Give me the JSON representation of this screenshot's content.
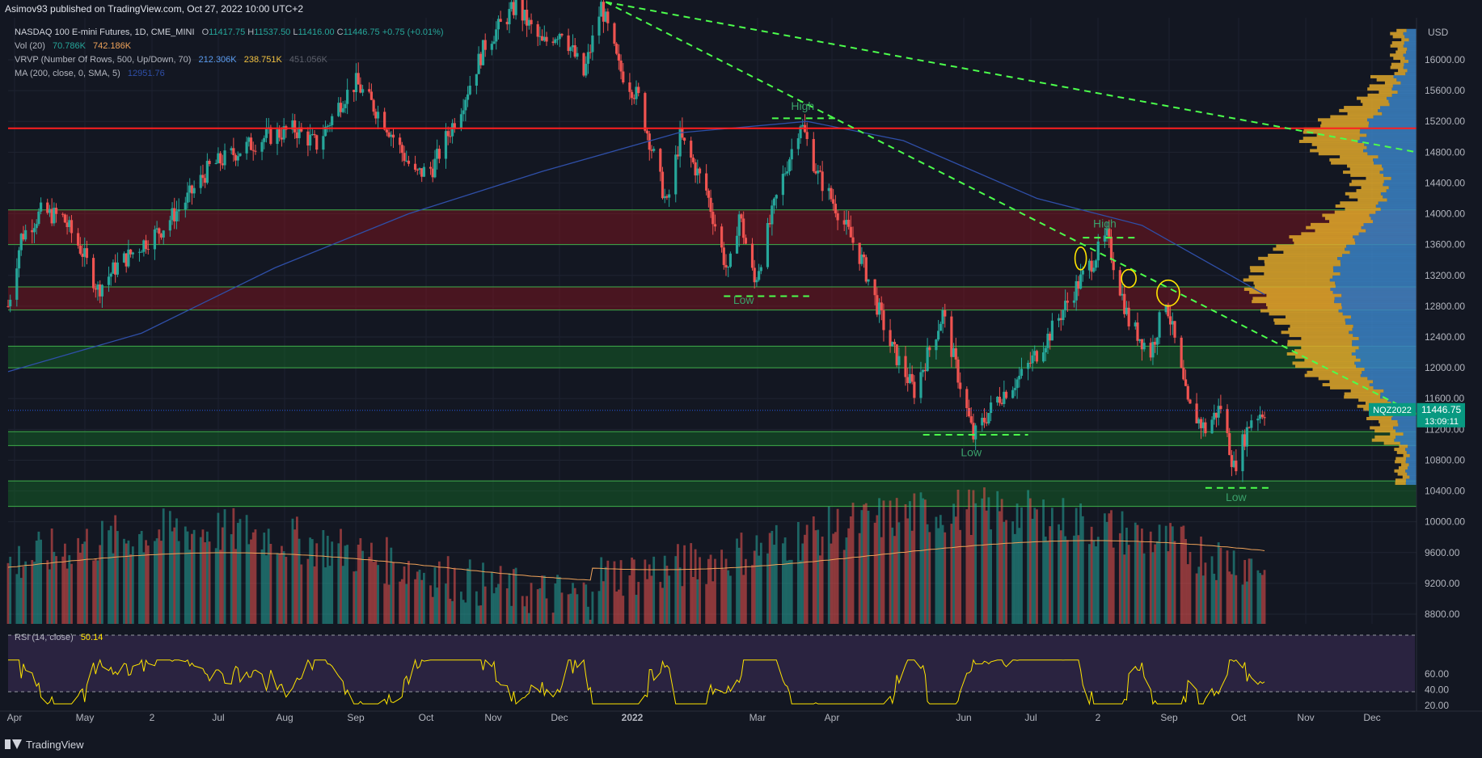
{
  "header": {
    "published": "Asimov93 published on TradingView.com, Oct 27, 2022 10:00 UTC+2"
  },
  "legend": {
    "symbol": "NASDAQ 100 E-mini Futures, 1D, CME_MINI",
    "o_label": "O",
    "o_value": "11417.75",
    "h_label": "H",
    "h_value": "11537.50",
    "l_label": "L",
    "l_value": "11416.00",
    "c_label": "C",
    "c_value": "11446.75",
    "change": "+0.75 (+0.01%)",
    "vol_label": "Vol (20)",
    "vol_a": "70.786K",
    "vol_b": "742.186K",
    "vrvp_label": "VRVP (Number Of Rows, 500, Up/Down, 70)",
    "vrvp_up": "212.306K",
    "vrvp_down": "238.751K",
    "vrvp_total": "451.056K",
    "ma_label": "MA (200, close, 0, SMA, 5)",
    "ma_value": "12951.76",
    "rsi_label": "RSI (14, close)",
    "rsi_value": "50.14"
  },
  "footer": {
    "brand": "TradingView"
  },
  "colors": {
    "up": "#26a69a",
    "down": "#ef5350",
    "ma": "#2f4fa8",
    "trend": "#4cff4c",
    "resistance": "#ff1f1f",
    "rsi": "#ffe500",
    "profile_up": "#3b82c4",
    "profile_down": "#e0a82a",
    "pill": "#089981"
  },
  "chart_data": {
    "type": "candlestick",
    "currency": "USD",
    "y_ticks": [
      16000,
      15600,
      15200,
      14800,
      14400,
      14000,
      13600,
      13200,
      12800,
      12400,
      12000,
      11600,
      11200,
      10800,
      10400,
      10000,
      9600,
      9200,
      8800
    ],
    "x_labels": [
      "Apr",
      "May",
      "2",
      "Jul",
      "Aug",
      "Sep",
      "Oct",
      "Nov",
      "Dec",
      "2022",
      "Mar",
      "Apr",
      "Jun",
      "Jul",
      "2",
      "Sep",
      "Oct",
      "Nov",
      "Dec"
    ],
    "price_path": [
      {
        "date": "2021-04-01",
        "close": 12800
      },
      {
        "date": "2021-04-07",
        "close": 13700
      },
      {
        "date": "2021-04-16",
        "close": 14020
      },
      {
        "date": "2021-04-26",
        "close": 13950
      },
      {
        "date": "2021-05-05",
        "close": 13500
      },
      {
        "date": "2021-05-12",
        "close": 13020
      },
      {
        "date": "2021-05-20",
        "close": 13300
      },
      {
        "date": "2021-06-01",
        "close": 13600
      },
      {
        "date": "2021-06-10",
        "close": 13800
      },
      {
        "date": "2021-06-22",
        "close": 14200
      },
      {
        "date": "2021-07-02",
        "close": 14600
      },
      {
        "date": "2021-07-14",
        "close": 14800
      },
      {
        "date": "2021-07-28",
        "close": 15000
      },
      {
        "date": "2021-08-10",
        "close": 15100
      },
      {
        "date": "2021-08-20",
        "close": 14900
      },
      {
        "date": "2021-09-01",
        "close": 15500
      },
      {
        "date": "2021-09-07",
        "close": 15700
      },
      {
        "date": "2021-09-20",
        "close": 15200
      },
      {
        "date": "2021-10-04",
        "close": 14500
      },
      {
        "date": "2021-10-12",
        "close": 14600
      },
      {
        "date": "2021-10-25",
        "close": 15400
      },
      {
        "date": "2021-11-05",
        "close": 16200
      },
      {
        "date": "2021-11-19",
        "close": 16700
      },
      {
        "date": "2021-12-01",
        "close": 16200
      },
      {
        "date": "2021-12-10",
        "close": 16400
      },
      {
        "date": "2021-12-20",
        "close": 15800
      },
      {
        "date": "2021-12-28",
        "close": 16700
      },
      {
        "date": "2022-01-05",
        "close": 15900
      },
      {
        "date": "2022-01-14",
        "close": 15500
      },
      {
        "date": "2022-01-27",
        "close": 14100
      },
      {
        "date": "2022-02-02",
        "close": 15000
      },
      {
        "date": "2022-02-14",
        "close": 14300
      },
      {
        "date": "2022-02-24",
        "close": 13200
      },
      {
        "date": "2022-03-01",
        "close": 14000
      },
      {
        "date": "2022-03-08",
        "close": 13100
      },
      {
        "date": "2022-03-18",
        "close": 14200
      },
      {
        "date": "2022-03-29",
        "close": 15200
      },
      {
        "date": "2022-04-06",
        "close": 14500
      },
      {
        "date": "2022-04-14",
        "close": 14100
      },
      {
        "date": "2022-04-26",
        "close": 13400
      },
      {
        "date": "2022-05-09",
        "close": 12300
      },
      {
        "date": "2022-05-20",
        "close": 11700
      },
      {
        "date": "2022-06-02",
        "close": 12700
      },
      {
        "date": "2022-06-16",
        "close": 11100
      },
      {
        "date": "2022-06-27",
        "close": 11600
      },
      {
        "date": "2022-07-08",
        "close": 11900
      },
      {
        "date": "2022-07-20",
        "close": 12400
      },
      {
        "date": "2022-08-01",
        "close": 13000
      },
      {
        "date": "2022-08-16",
        "close": 13700
      },
      {
        "date": "2022-08-26",
        "close": 12600
      },
      {
        "date": "2022-09-05",
        "close": 12200
      },
      {
        "date": "2022-09-12",
        "close": 12900
      },
      {
        "date": "2022-09-22",
        "close": 11500
      },
      {
        "date": "2022-09-30",
        "close": 11200
      },
      {
        "date": "2022-10-07",
        "close": 11500
      },
      {
        "date": "2022-10-13",
        "close": 10700
      },
      {
        "date": "2022-10-21",
        "close": 11350
      },
      {
        "date": "2022-10-27",
        "close": 11446.75
      }
    ],
    "ma200_path": [
      {
        "date": "2021-04-01",
        "value": 11950
      },
      {
        "date": "2021-06-01",
        "value": 12450
      },
      {
        "date": "2021-08-01",
        "value": 13300
      },
      {
        "date": "2021-10-01",
        "value": 14000
      },
      {
        "date": "2021-12-01",
        "value": 14550
      },
      {
        "date": "2022-02-01",
        "value": 15050
      },
      {
        "date": "2022-04-01",
        "value": 15200
      },
      {
        "date": "2022-05-15",
        "value": 14950
      },
      {
        "date": "2022-07-15",
        "value": 14200
      },
      {
        "date": "2022-09-01",
        "value": 13850
      },
      {
        "date": "2022-10-27",
        "value": 12951.76
      }
    ],
    "zones": [
      {
        "type": "resistance",
        "from": 13600,
        "to": 14050
      },
      {
        "type": "resistance",
        "from": 12750,
        "to": 13050
      },
      {
        "type": "support",
        "from": 12000,
        "to": 12280
      },
      {
        "type": "support",
        "from": 10990,
        "to": 11170
      },
      {
        "type": "support",
        "from": 10200,
        "to": 10530
      }
    ],
    "resistance_line": 15110,
    "annotations": [
      {
        "text": "High",
        "date": "2022-03-30",
        "price": 15350
      },
      {
        "text": "Low",
        "date": "2022-03-03",
        "price": 12830
      },
      {
        "text": "Low",
        "date": "2022-06-15",
        "price": 10850
      },
      {
        "text": "High",
        "date": "2022-08-15",
        "price": 13820
      },
      {
        "text": "Low",
        "date": "2022-10-14",
        "price": 10270
      }
    ],
    "price_label": {
      "symbol": "NQZ2022",
      "price": "11446.75",
      "countdown": "13:09:11"
    },
    "rsi_ticks": [
      "60.00",
      "40.00",
      "20.00"
    ],
    "rsi_last": 50.14
  }
}
